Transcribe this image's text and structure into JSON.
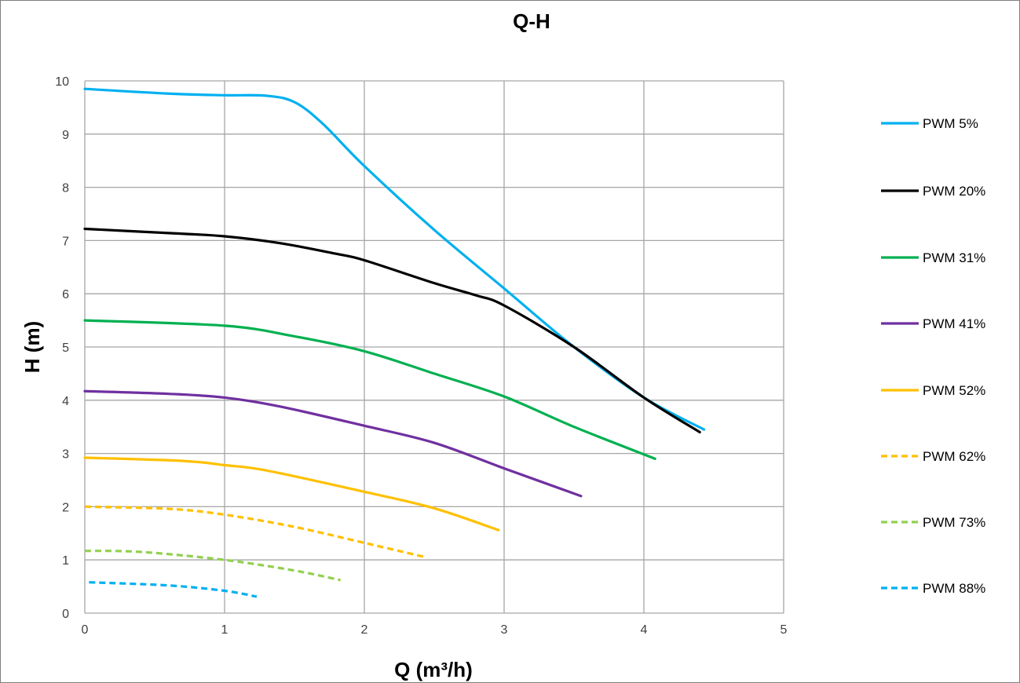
{
  "chart_data": {
    "type": "line",
    "title": "Q-H",
    "xlabel": "Q (m³/h)",
    "ylabel": "H (m)",
    "xlim": [
      0,
      5
    ],
    "ylim": [
      0,
      10
    ],
    "xticks": [
      "0",
      "1",
      "2",
      "3",
      "4",
      "5"
    ],
    "yticks": [
      "0",
      "1",
      "2",
      "3",
      "4",
      "5",
      "6",
      "7",
      "8",
      "9",
      "10"
    ],
    "grid": true,
    "legend_position": "right",
    "series": [
      {
        "name": "PWM 5%",
        "color": "#00B0F0",
        "dash": "solid",
        "points": [
          [
            0,
            9.85
          ],
          [
            0.6,
            9.76
          ],
          [
            1,
            9.73
          ],
          [
            1.3,
            9.72
          ],
          [
            1.5,
            9.6
          ],
          [
            1.7,
            9.2
          ],
          [
            2,
            8.4
          ],
          [
            2.5,
            7.2
          ],
          [
            3,
            6.1
          ],
          [
            3.5,
            5.0
          ],
          [
            4,
            4.05
          ],
          [
            4.43,
            3.45
          ]
        ]
      },
      {
        "name": "PWM 20%",
        "color": "#000000",
        "dash": "solid",
        "points": [
          [
            0,
            7.22
          ],
          [
            0.6,
            7.14
          ],
          [
            1,
            7.08
          ],
          [
            1.4,
            6.95
          ],
          [
            1.8,
            6.75
          ],
          [
            2,
            6.63
          ],
          [
            2.5,
            6.2
          ],
          [
            2.8,
            5.97
          ],
          [
            3,
            5.78
          ],
          [
            3.5,
            5.0
          ],
          [
            4,
            4.05
          ],
          [
            4.4,
            3.4
          ]
        ]
      },
      {
        "name": "PWM 31%",
        "color": "#00B050",
        "dash": "solid",
        "points": [
          [
            0,
            5.5
          ],
          [
            1,
            5.4
          ],
          [
            1.5,
            5.2
          ],
          [
            2,
            4.92
          ],
          [
            2.5,
            4.5
          ],
          [
            3,
            4.07
          ],
          [
            3.5,
            3.5
          ],
          [
            4.08,
            2.9
          ]
        ]
      },
      {
        "name": "PWM 41%",
        "color": "#7030A0",
        "dash": "solid",
        "points": [
          [
            0,
            4.17
          ],
          [
            0.6,
            4.12
          ],
          [
            1,
            4.05
          ],
          [
            1.4,
            3.88
          ],
          [
            2,
            3.52
          ],
          [
            2.5,
            3.2
          ],
          [
            3,
            2.72
          ],
          [
            3.55,
            2.2
          ]
        ]
      },
      {
        "name": "PWM 52%",
        "color": "#FFC000",
        "dash": "solid",
        "points": [
          [
            0,
            2.92
          ],
          [
            0.7,
            2.86
          ],
          [
            1,
            2.78
          ],
          [
            1.3,
            2.68
          ],
          [
            2,
            2.28
          ],
          [
            2.5,
            1.97
          ],
          [
            2.96,
            1.56
          ]
        ]
      },
      {
        "name": "PWM 62%",
        "color": "#FFC000",
        "dash": "dashed",
        "points": [
          [
            0,
            2.0
          ],
          [
            0.6,
            1.96
          ],
          [
            1,
            1.85
          ],
          [
            1.5,
            1.62
          ],
          [
            2,
            1.32
          ],
          [
            2.44,
            1.05
          ]
        ]
      },
      {
        "name": "PWM 73%",
        "color": "#92D050",
        "dash": "dashed",
        "points": [
          [
            0,
            1.17
          ],
          [
            0.4,
            1.15
          ],
          [
            1,
            1.0
          ],
          [
            1.5,
            0.8
          ],
          [
            1.83,
            0.62
          ]
        ]
      },
      {
        "name": "PWM 88%",
        "color": "#00B0F0",
        "dash": "dashed",
        "points": [
          [
            0.03,
            0.58
          ],
          [
            0.6,
            0.52
          ],
          [
            1,
            0.42
          ],
          [
            1.23,
            0.31
          ]
        ]
      }
    ]
  }
}
